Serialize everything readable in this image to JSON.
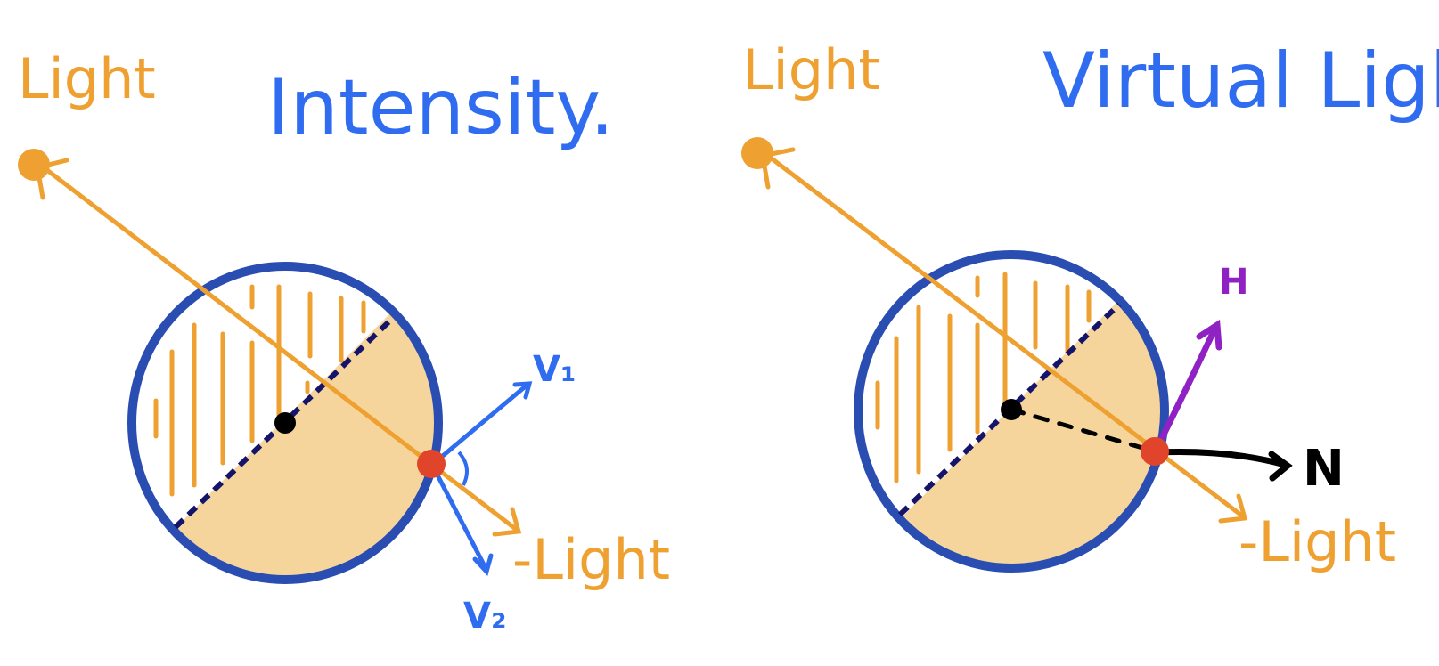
{
  "colors": {
    "light": "#EEA030",
    "title": "#2F6CF0",
    "circle_outline": "#2A4DB2",
    "lit_fill": "#F6D59C",
    "terminator": "#14146A",
    "surface_point": "#E0452C",
    "center_point": "#000000",
    "vector_blue": "#2F6CF0",
    "half_vector": "#9022C4",
    "normal": "#000000"
  },
  "panels": [
    {
      "id": "intensity",
      "title": "Intensity.",
      "light_label": "Light",
      "neg_light_label": "-Light",
      "vectors": [
        {
          "name": "v1",
          "label": "V₁",
          "color": "#2F6CF0"
        },
        {
          "name": "v2",
          "label": "V₂",
          "color": "#2F6CF0"
        }
      ]
    },
    {
      "id": "virtual-light",
      "title": "Virtual Light",
      "light_label": "Light",
      "neg_light_label": "-Light",
      "vectors": [
        {
          "name": "h",
          "label": "H",
          "color": "#9022C4"
        },
        {
          "name": "n",
          "label": "N",
          "color": "#000000"
        }
      ]
    }
  ]
}
